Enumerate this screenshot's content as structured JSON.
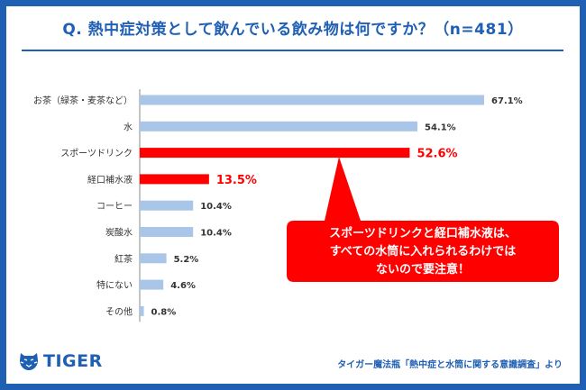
{
  "title": "Q. 熱中症対策として飲んでいる飲み物は何ですか？（n=481）",
  "chart_data": {
    "type": "bar",
    "orientation": "horizontal",
    "categories": [
      "お茶（緑茶・麦茶など）",
      "水",
      "スポーツドリンク",
      "経口補水液",
      "コーヒー",
      "炭酸水",
      "紅茶",
      "特にない",
      "その他"
    ],
    "values": [
      67.1,
      54.1,
      52.6,
      13.5,
      10.4,
      10.4,
      5.2,
      4.6,
      0.8
    ],
    "value_labels": [
      "67.1%",
      "54.1%",
      "52.6%",
      "13.5%",
      "10.4%",
      "10.4%",
      "5.2%",
      "4.6%",
      "0.8%"
    ],
    "highlighted": [
      false,
      false,
      true,
      true,
      false,
      false,
      false,
      false,
      false
    ],
    "xlim": [
      0,
      70
    ],
    "grid": false,
    "colors": {
      "normal": "#a9c6e8",
      "highlight": "#ff0000",
      "normal_label": "#333333",
      "highlight_label": "#ff0000"
    }
  },
  "callout": {
    "lines": [
      "スポーツドリンクと経口補水液は、",
      "すべての水筒に入れられるわけでは",
      "ないので要注意！"
    ],
    "color": "#ff0000"
  },
  "logo": {
    "text": "TIGER"
  },
  "source": "タイガー魔法瓶「熱中症と水筒に関する意識調査」より",
  "colors": {
    "frame": "#1f5fb4",
    "accent": "#1f5fb4"
  }
}
